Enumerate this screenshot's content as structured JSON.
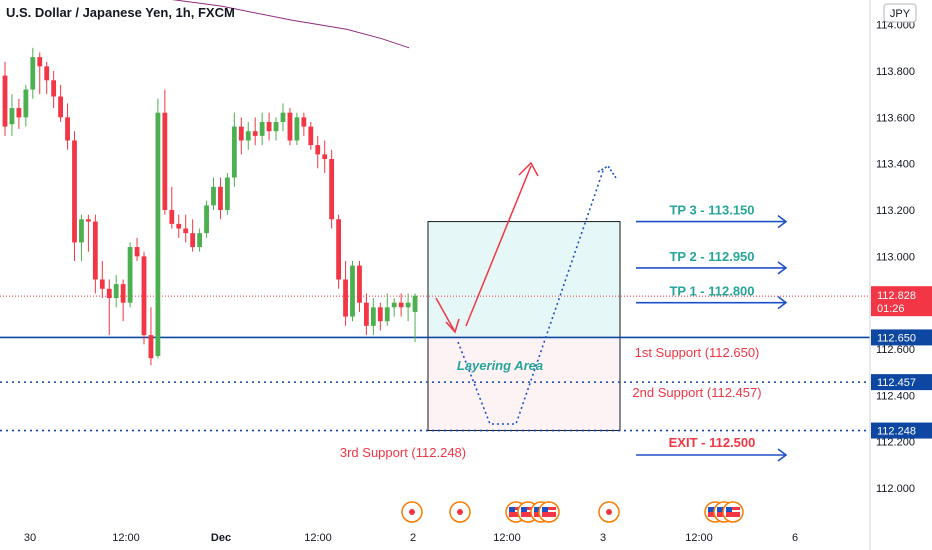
{
  "header": {
    "title": "U.S. Dollar / Japanese Yen, 1h, FXCM",
    "currency_badge": "JPY"
  },
  "chart_data": {
    "type": "candlestick",
    "x_ticks": [
      "30",
      "12:00",
      "Dec",
      "12:00",
      "2",
      "12:00",
      "3",
      "12:00",
      "6"
    ],
    "y_ticks": [
      "114.000",
      "113.800",
      "113.600",
      "113.400",
      "113.200",
      "113.000",
      "112.600",
      "112.400",
      "112.200",
      "112.000"
    ],
    "ylim": [
      111.88,
      114.12
    ],
    "last_price": {
      "value": "112.828",
      "countdown": "01:26"
    },
    "price_levels": [
      {
        "value": 112.65,
        "label": "112.650",
        "style": "solid"
      },
      {
        "value": 112.457,
        "label": "112.457",
        "style": "dotted"
      },
      {
        "value": 112.248,
        "label": "112.248",
        "style": "dotted"
      }
    ],
    "support_labels": [
      "1st Support (112.650)",
      "2nd Support (112.457)",
      "3rd Support (112.248)"
    ],
    "zone_label": "Layering Area",
    "zone": {
      "top": 113.15,
      "mid": 112.65,
      "bottom": 112.248
    },
    "targets": [
      {
        "label": "TP 3 - 113.150",
        "value": 113.15
      },
      {
        "label": "TP 2 - 112.950",
        "value": 112.95
      },
      {
        "label": "TP 1 - 112.800",
        "value": 112.8
      }
    ],
    "exit": {
      "label": "EXIT - 112.500",
      "value": 112.5
    },
    "candles": [
      {
        "o": 113.78,
        "h": 113.84,
        "l": 113.52,
        "c": 113.56
      },
      {
        "o": 113.57,
        "h": 113.7,
        "l": 113.52,
        "c": 113.64
      },
      {
        "o": 113.64,
        "h": 113.68,
        "l": 113.55,
        "c": 113.6
      },
      {
        "o": 113.6,
        "h": 113.74,
        "l": 113.56,
        "c": 113.72
      },
      {
        "o": 113.72,
        "h": 113.9,
        "l": 113.68,
        "c": 113.86
      },
      {
        "o": 113.86,
        "h": 113.88,
        "l": 113.7,
        "c": 113.82
      },
      {
        "o": 113.82,
        "h": 113.84,
        "l": 113.7,
        "c": 113.76
      },
      {
        "o": 113.76,
        "h": 113.8,
        "l": 113.64,
        "c": 113.69
      },
      {
        "o": 113.69,
        "h": 113.74,
        "l": 113.58,
        "c": 113.6
      },
      {
        "o": 113.6,
        "h": 113.66,
        "l": 113.46,
        "c": 113.5
      },
      {
        "o": 113.5,
        "h": 113.54,
        "l": 112.98,
        "c": 113.06
      },
      {
        "o": 113.06,
        "h": 113.18,
        "l": 112.98,
        "c": 113.16
      },
      {
        "o": 113.16,
        "h": 113.18,
        "l": 113.02,
        "c": 113.15
      },
      {
        "o": 113.15,
        "h": 113.18,
        "l": 112.84,
        "c": 112.9
      },
      {
        "o": 112.9,
        "h": 112.98,
        "l": 112.82,
        "c": 112.86
      },
      {
        "o": 112.86,
        "h": 112.9,
        "l": 112.66,
        "c": 112.82
      },
      {
        "o": 112.82,
        "h": 112.92,
        "l": 112.78,
        "c": 112.88
      },
      {
        "o": 112.88,
        "h": 112.9,
        "l": 112.72,
        "c": 112.8
      },
      {
        "o": 112.8,
        "h": 113.06,
        "l": 112.78,
        "c": 113.04
      },
      {
        "o": 113.04,
        "h": 113.08,
        "l": 112.98,
        "c": 113.0
      },
      {
        "o": 113.0,
        "h": 113.02,
        "l": 112.62,
        "c": 112.66
      },
      {
        "o": 112.66,
        "h": 112.78,
        "l": 112.53,
        "c": 112.56
      },
      {
        "o": 112.57,
        "h": 113.68,
        "l": 112.56,
        "c": 113.62
      },
      {
        "o": 113.62,
        "h": 113.72,
        "l": 113.18,
        "c": 113.2
      },
      {
        "o": 113.2,
        "h": 113.3,
        "l": 113.12,
        "c": 113.14
      },
      {
        "o": 113.14,
        "h": 113.18,
        "l": 113.08,
        "c": 113.12
      },
      {
        "o": 113.12,
        "h": 113.18,
        "l": 113.06,
        "c": 113.1
      },
      {
        "o": 113.1,
        "h": 113.16,
        "l": 113.02,
        "c": 113.04
      },
      {
        "o": 113.04,
        "h": 113.12,
        "l": 113.02,
        "c": 113.1
      },
      {
        "o": 113.1,
        "h": 113.24,
        "l": 113.08,
        "c": 113.22
      },
      {
        "o": 113.22,
        "h": 113.34,
        "l": 113.2,
        "c": 113.3
      },
      {
        "o": 113.3,
        "h": 113.34,
        "l": 113.16,
        "c": 113.2
      },
      {
        "o": 113.2,
        "h": 113.36,
        "l": 113.18,
        "c": 113.34
      },
      {
        "o": 113.34,
        "h": 113.62,
        "l": 113.3,
        "c": 113.56
      },
      {
        "o": 113.56,
        "h": 113.6,
        "l": 113.44,
        "c": 113.5
      },
      {
        "o": 113.5,
        "h": 113.58,
        "l": 113.46,
        "c": 113.54
      },
      {
        "o": 113.54,
        "h": 113.6,
        "l": 113.48,
        "c": 113.52
      },
      {
        "o": 113.52,
        "h": 113.62,
        "l": 113.48,
        "c": 113.58
      },
      {
        "o": 113.58,
        "h": 113.62,
        "l": 113.5,
        "c": 113.54
      },
      {
        "o": 113.54,
        "h": 113.6,
        "l": 113.5,
        "c": 113.58
      },
      {
        "o": 113.58,
        "h": 113.66,
        "l": 113.54,
        "c": 113.62
      },
      {
        "o": 113.62,
        "h": 113.64,
        "l": 113.48,
        "c": 113.5
      },
      {
        "o": 113.5,
        "h": 113.62,
        "l": 113.48,
        "c": 113.6
      },
      {
        "o": 113.6,
        "h": 113.62,
        "l": 113.52,
        "c": 113.56
      },
      {
        "o": 113.56,
        "h": 113.58,
        "l": 113.46,
        "c": 113.48
      },
      {
        "o": 113.48,
        "h": 113.52,
        "l": 113.38,
        "c": 113.44
      },
      {
        "o": 113.44,
        "h": 113.5,
        "l": 113.36,
        "c": 113.42
      },
      {
        "o": 113.42,
        "h": 113.46,
        "l": 113.12,
        "c": 113.16
      },
      {
        "o": 113.16,
        "h": 113.18,
        "l": 112.86,
        "c": 112.9
      },
      {
        "o": 112.9,
        "h": 112.98,
        "l": 112.7,
        "c": 112.74
      },
      {
        "o": 112.74,
        "h": 112.98,
        "l": 112.72,
        "c": 112.96
      },
      {
        "o": 112.96,
        "h": 112.98,
        "l": 112.76,
        "c": 112.8
      },
      {
        "o": 112.8,
        "h": 112.84,
        "l": 112.66,
        "c": 112.7
      },
      {
        "o": 112.7,
        "h": 112.82,
        "l": 112.66,
        "c": 112.78
      },
      {
        "o": 112.78,
        "h": 112.8,
        "l": 112.68,
        "c": 112.72
      },
      {
        "o": 112.72,
        "h": 112.84,
        "l": 112.7,
        "c": 112.78
      },
      {
        "o": 112.78,
        "h": 112.82,
        "l": 112.74,
        "c": 112.8
      },
      {
        "o": 112.8,
        "h": 112.84,
        "l": 112.74,
        "c": 112.78
      },
      {
        "o": 112.78,
        "h": 112.84,
        "l": 112.72,
        "c": 112.8
      },
      {
        "o": 112.76,
        "h": 112.84,
        "l": 112.63,
        "c": 112.83
      }
    ],
    "ma_line": [
      [
        0,
        114.12
      ],
      [
        10,
        114.08
      ],
      [
        20,
        114.02
      ],
      [
        28,
        113.98
      ],
      [
        33,
        113.94
      ],
      [
        37,
        113.9
      ]
    ],
    "event_icons": [
      "circle-marker",
      "circle-marker",
      "us-flag",
      "us-flag",
      "us-flag",
      "us-flag",
      "circle-marker",
      "us-flag",
      "us-flag",
      "us-flag"
    ],
    "colors": {
      "up": "#4caf50",
      "down": "#f23645",
      "level": "#0d47a1",
      "tp": "#26a69a",
      "support": "#f23645",
      "arrow_blue": "#1e50c8",
      "zone_top": "#e6f7f7",
      "zone_bottom": "#fdf3f4",
      "price_tag": "#f23645",
      "ma": "#8e2c7e"
    }
  }
}
